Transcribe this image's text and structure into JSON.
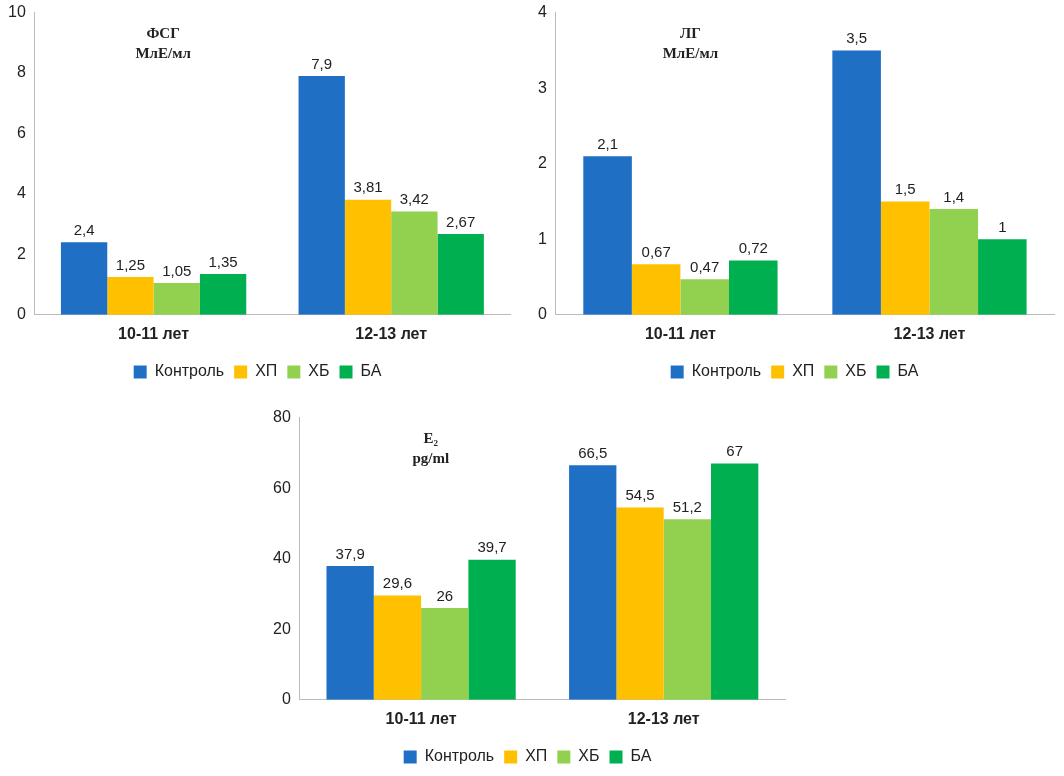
{
  "chart_data": [
    {
      "type": "bar",
      "title": "ФСГ",
      "subtitle": "МлЕ/мл",
      "categories": [
        "10-11 лет",
        "12-13 лет"
      ],
      "series": [
        {
          "name": "Контроль",
          "color": "#1f6fc5",
          "values": [
            2.4,
            7.9
          ],
          "value_labels": [
            "2,4",
            "7,9"
          ]
        },
        {
          "name": "ХП",
          "color": "#ffc000",
          "values": [
            1.25,
            3.81
          ],
          "value_labels": [
            "1,25",
            "3,81"
          ]
        },
        {
          "name": "ХБ",
          "color": "#92d050",
          "values": [
            1.05,
            3.42
          ],
          "value_labels": [
            "1,05",
            "3,42"
          ]
        },
        {
          "name": "БА",
          "color": "#00b050",
          "values": [
            1.35,
            2.67
          ],
          "value_labels": [
            "1,35",
            "2,67"
          ]
        }
      ],
      "ylim": [
        0,
        10
      ],
      "yticks": [
        0,
        2,
        4,
        6,
        8,
        10
      ],
      "grid": false,
      "legend": "bottom"
    },
    {
      "type": "bar",
      "title": "ЛГ",
      "subtitle": "МлЕ/мл",
      "categories": [
        "10-11 лет",
        "12-13 лет"
      ],
      "series": [
        {
          "name": "Контроль",
          "color": "#1f6fc5",
          "values": [
            2.1,
            3.5
          ],
          "value_labels": [
            "2,1",
            "3,5"
          ]
        },
        {
          "name": "ХП",
          "color": "#ffc000",
          "values": [
            0.67,
            1.5
          ],
          "value_labels": [
            "0,67",
            "1,5"
          ]
        },
        {
          "name": "ХБ",
          "color": "#92d050",
          "values": [
            0.47,
            1.4
          ],
          "value_labels": [
            "0,47",
            "1,4"
          ]
        },
        {
          "name": "БА",
          "color": "#00b050",
          "values": [
            0.72,
            1
          ],
          "value_labels": [
            "0,72",
            "1"
          ]
        }
      ],
      "ylim": [
        0,
        4
      ],
      "yticks": [
        0,
        1,
        2,
        3,
        4
      ],
      "grid": false,
      "legend": "bottom"
    },
    {
      "type": "bar",
      "title": "E₂",
      "subtitle": "pg/ml",
      "categories": [
        "10-11 лет",
        "12-13 лет"
      ],
      "series": [
        {
          "name": "Контроль",
          "color": "#1f6fc5",
          "values": [
            37.9,
            66.5
          ],
          "value_labels": [
            "37,9",
            "66,5"
          ]
        },
        {
          "name": "ХП",
          "color": "#ffc000",
          "values": [
            29.6,
            54.5
          ],
          "value_labels": [
            "29,6",
            "54,5"
          ]
        },
        {
          "name": "ХБ",
          "color": "#92d050",
          "values": [
            26,
            51.2
          ],
          "value_labels": [
            "26",
            "51,2"
          ]
        },
        {
          "name": "БА",
          "color": "#00b050",
          "values": [
            39.7,
            67
          ],
          "value_labels": [
            "39,7",
            "67"
          ]
        }
      ],
      "ylim": [
        0,
        80
      ],
      "yticks": [
        0,
        20,
        40,
        60,
        80
      ],
      "grid": false,
      "legend": "bottom"
    }
  ]
}
